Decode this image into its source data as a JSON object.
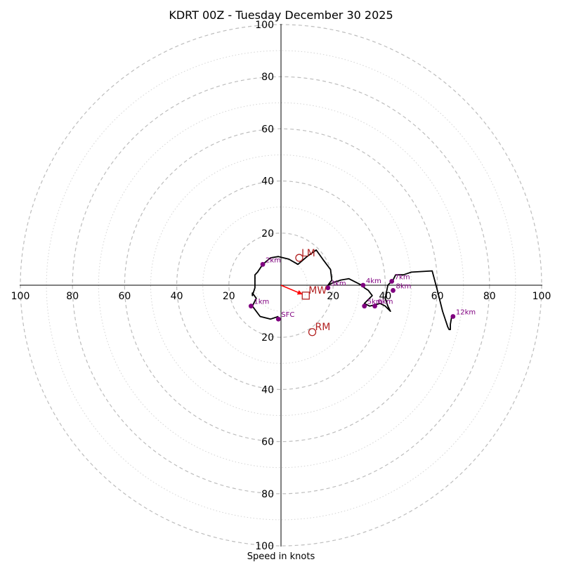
{
  "chart_data": {
    "type": "hodograph",
    "title": "KDRT 00Z - Tuesday December 30 2025",
    "xlabel": "Speed in knots",
    "units": "knots",
    "max_speed": 100,
    "ring_major_step": 20,
    "ring_minor_step": 10,
    "tick_values": [
      20,
      40,
      60,
      80,
      100
    ],
    "colors": {
      "trace": "#000000",
      "height_points": "#800080",
      "storm_motion": "#b22222",
      "mean_wind_vector": "#ff0000",
      "grid": "#bdbdbd",
      "grid_minor": "#d4d4d4"
    },
    "trace": [
      [
        -1,
        -12
      ],
      [
        -4,
        -13
      ],
      [
        -8,
        -12
      ],
      [
        -11,
        -8
      ],
      [
        -9.5,
        -5
      ],
      [
        -11,
        -3
      ],
      [
        -11,
        -4
      ],
      [
        -10,
        -1
      ],
      [
        -10,
        1.5
      ],
      [
        -10,
        4
      ],
      [
        -9,
        5
      ],
      [
        -7,
        8
      ],
      [
        -4,
        10.5
      ],
      [
        -1,
        11
      ],
      [
        3,
        10
      ],
      [
        6.5,
        8
      ],
      [
        10,
        11
      ],
      [
        13.5,
        13.5
      ],
      [
        16,
        10
      ],
      [
        19,
        6
      ],
      [
        19.5,
        2
      ],
      [
        18,
        0
      ],
      [
        20,
        1
      ],
      [
        23,
        2
      ],
      [
        26,
        2.5
      ],
      [
        28,
        1.5
      ],
      [
        31,
        0
      ],
      [
        32,
        -1
      ],
      [
        33.5,
        -2
      ],
      [
        35,
        -4
      ],
      [
        33,
        -6
      ],
      [
        32,
        -7
      ],
      [
        34,
        -8
      ],
      [
        38,
        -7
      ],
      [
        40,
        -8
      ],
      [
        42,
        -10
      ],
      [
        41,
        -8
      ],
      [
        40,
        -5
      ],
      [
        41,
        0
      ],
      [
        42,
        1
      ],
      [
        43,
        2
      ],
      [
        44,
        4
      ],
      [
        47,
        4
      ],
      [
        50,
        5
      ],
      [
        58,
        5.5
      ],
      [
        60,
        -2
      ],
      [
        62,
        -10
      ],
      [
        64,
        -16
      ],
      [
        64.5,
        -17
      ],
      [
        65,
        -17
      ],
      [
        65,
        -15
      ],
      [
        65.5,
        -12
      ]
    ],
    "height_points": [
      {
        "label": "SFC",
        "u": -1,
        "v": -13
      },
      {
        "label": "1km",
        "u": -11.5,
        "v": -8
      },
      {
        "label": "2km",
        "u": -7,
        "v": 8
      },
      {
        "label": "3km",
        "u": 18,
        "v": -1
      },
      {
        "label": "4km",
        "u": 31.5,
        "v": 0
      },
      {
        "label": "5km",
        "u": 32,
        "v": -8
      },
      {
        "label": "6km",
        "u": 36,
        "v": -8
      },
      {
        "label": "7km",
        "u": 42.5,
        "v": 1.5
      },
      {
        "label": "8km",
        "u": 43,
        "v": -2
      },
      {
        "label": "12km",
        "u": 66,
        "v": -12
      }
    ],
    "storm_motion": {
      "LM": {
        "u": 7,
        "v": 10.5
      },
      "RM": {
        "u": 12,
        "v": -18
      },
      "MW": {
        "u": 9.5,
        "v": -4
      }
    }
  }
}
